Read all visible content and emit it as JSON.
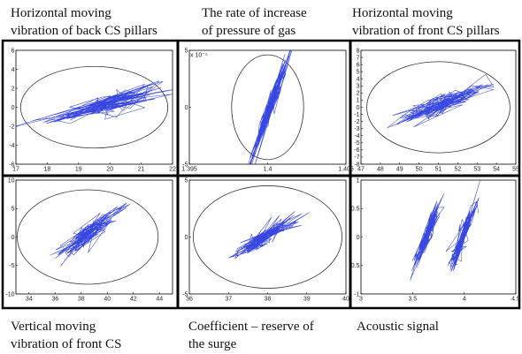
{
  "figure": {
    "captions_top": [
      "Horizontal moving\nvibration of back CS pillars",
      "The rate of increase\nof pressure of gas",
      "Horizontal moving\nvibration of front CS pillars"
    ],
    "captions_bottom": [
      "Vertical moving\nvibration of front CS",
      "Coefficient – reserve of\nthe surge",
      "Acoustic signal"
    ],
    "trace_color": "#2233dd"
  },
  "chart_data": [
    {
      "type": "scatter",
      "title": "Horizontal moving vibration of back CS pillars",
      "xlim": [
        17,
        22
      ],
      "ylim": [
        -6,
        6
      ],
      "xticks": [
        "17",
        "18",
        "19",
        "20",
        "21",
        "22"
      ],
      "yticks": [
        "6",
        "4",
        "2",
        "0",
        "-2",
        "-4",
        "-6"
      ],
      "cloud": {
        "cx": 19.8,
        "cy": 0.3,
        "sx": 0.9,
        "sy": 1.6,
        "slope": 0.9
      },
      "ellipse": {
        "cx": 19.5,
        "cy": 0.0,
        "rx": 2.35,
        "ry": 4.3
      }
    },
    {
      "type": "scatter",
      "title": "The rate of increase of pressure of gas",
      "xlim": [
        1.395,
        1.405
      ],
      "ylim": [
        -5,
        5
      ],
      "xticks": [
        "1.395",
        "1.4",
        "1.405"
      ],
      "yticks": [
        "5",
        "0",
        "-5"
      ],
      "ylabel_exponent": "x 10⁻⁵",
      "cloud": {
        "cx": 1.4002,
        "cy": 0.2,
        "sx": 0.0006,
        "sy": 1.7,
        "slope": 3500
      },
      "ellipse": {
        "cx": 1.4,
        "cy": 0.0,
        "rx": 0.0023,
        "ry": 4.6
      }
    },
    {
      "type": "scatter",
      "title": "Horizontal moving vibration of front CS pillars",
      "xlim": [
        47,
        55
      ],
      "ylim": [
        -8,
        8
      ],
      "xticks": [
        "47",
        "48",
        "49",
        "50",
        "51",
        "52",
        "53",
        "54",
        "55"
      ],
      "yticks": [
        "8",
        "7",
        "6",
        "5",
        "4",
        "3",
        "2",
        "1",
        "0",
        "-1",
        "-2",
        "-3",
        "-4",
        "-5",
        "-6",
        "-7",
        "-8"
      ],
      "cloud": {
        "cx": 51.2,
        "cy": 0.4,
        "sx": 1.2,
        "sy": 2.2,
        "slope": 1.0
      },
      "ellipse": {
        "cx": 51.0,
        "cy": 0.0,
        "rx": 3.7,
        "ry": 6.4
      }
    },
    {
      "type": "scatter",
      "title": "Vertical moving vibration of front CS",
      "xlim": [
        33,
        45
      ],
      "ylim": [
        -10,
        10
      ],
      "xticks": [
        "34",
        "36",
        "38",
        "40",
        "42",
        "44"
      ],
      "yticks": [
        "10",
        "5",
        "0",
        "-5",
        "-10"
      ],
      "cloud": {
        "cx": 38.4,
        "cy": 0.3,
        "sx": 1.2,
        "sy": 2.8,
        "slope": 1.6
      },
      "ellipse": {
        "cx": 38.5,
        "cy": 0.0,
        "rx": 5.4,
        "ry": 8.3
      }
    },
    {
      "type": "scatter",
      "title": "Coefficient – reserve of the surge",
      "xlim": [
        36,
        40
      ],
      "ylim": [
        -5,
        5
      ],
      "xticks": [
        "36",
        "37",
        "38",
        "39",
        "40"
      ],
      "yticks": [
        "5",
        "0",
        "-5"
      ],
      "cloud": {
        "cx": 37.9,
        "cy": 0.0,
        "sx": 0.4,
        "sy": 1.2,
        "slope": 2.0
      },
      "ellipse": {
        "cx": 38.0,
        "cy": 0.0,
        "rx": 1.9,
        "ry": 4.5
      }
    },
    {
      "type": "scatter",
      "title": "Acoustic signal",
      "xlim": [
        3,
        4.5
      ],
      "ylim": [
        -1,
        1
      ],
      "xticks": [
        "3",
        "3.5",
        "4",
        "4.5"
      ],
      "yticks": [
        "1",
        "0.5",
        "0",
        "-0.5",
        "-1"
      ],
      "clusters": [
        {
          "cx": 3.63,
          "cy": 0.0,
          "sx": 0.07,
          "sy": 0.32,
          "slope": 4.2
        },
        {
          "cx": 3.98,
          "cy": 0.0,
          "sx": 0.07,
          "sy": 0.32,
          "slope": 4.2
        }
      ]
    }
  ]
}
